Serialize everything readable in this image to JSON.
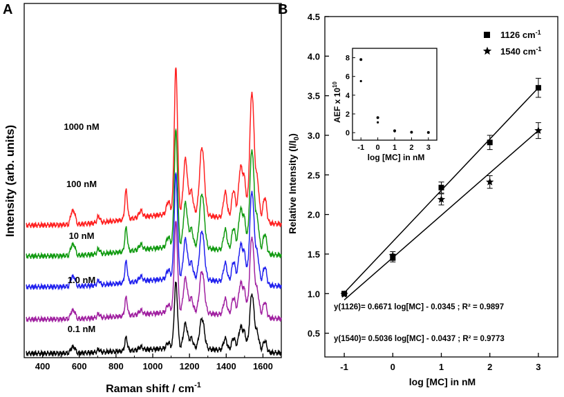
{
  "chart_data": [
    {
      "type": "line",
      "panel_label": "A",
      "title": "",
      "xlabel": "Raman shift / cm",
      "xlabel_sup": "-1",
      "ylabel": "Intensity (arb. units)",
      "xlim": [
        300,
        1700
      ],
      "xticks": [
        "400",
        "600",
        "800",
        "1000",
        "1200",
        "1400",
        "1600"
      ],
      "peaks": [
        {
          "x": 560,
          "w": 8,
          "h": 0.4
        },
        {
          "x": 575,
          "w": 6,
          "h": 0.3
        },
        {
          "x": 705,
          "w": 8,
          "h": 0.2
        },
        {
          "x": 855,
          "w": 7,
          "h": 0.9
        },
        {
          "x": 935,
          "w": 10,
          "h": 0.2
        },
        {
          "x": 1085,
          "w": 10,
          "h": 0.4
        },
        {
          "x": 1126,
          "w": 9,
          "h": 4.5
        },
        {
          "x": 1178,
          "w": 11,
          "h": 1.7
        },
        {
          "x": 1210,
          "w": 10,
          "h": 0.7
        },
        {
          "x": 1268,
          "w": 13,
          "h": 2.1
        },
        {
          "x": 1395,
          "w": 10,
          "h": 0.8
        },
        {
          "x": 1440,
          "w": 10,
          "h": 0.9
        },
        {
          "x": 1478,
          "w": 11,
          "h": 1.6
        },
        {
          "x": 1500,
          "w": 9,
          "h": 1.1
        },
        {
          "x": 1540,
          "w": 12,
          "h": 4.0
        },
        {
          "x": 1570,
          "w": 10,
          "h": 1.2
        },
        {
          "x": 1610,
          "w": 10,
          "h": 0.8
        }
      ],
      "series": [
        {
          "name": "1000 nM",
          "color": "#ff2020",
          "baseline": 3.95,
          "scale": 1.0
        },
        {
          "name": "100 nM",
          "color": "#109a10",
          "baseline": 3.0,
          "scale": 0.8
        },
        {
          "name": "10 nM",
          "color": "#2020ee",
          "baseline": 2.05,
          "scale": 0.72
        },
        {
          "name": "1.0 nM",
          "color": "#a020a0",
          "baseline": 1.05,
          "scale": 0.62
        },
        {
          "name": "0.1 nM",
          "color": "#000000",
          "baseline": 0.0,
          "scale": 0.45
        }
      ]
    },
    {
      "type": "scatter",
      "panel_label": "B",
      "title": "",
      "xlabel": "log [MC] in nM",
      "ylabel": "Relative Intensity (I/I",
      "ylabel_sub": "0",
      "ylabel_end": ")",
      "xlim": [
        -1.4,
        3.4
      ],
      "ylim": [
        0.2,
        4.5
      ],
      "xticks": [
        -1,
        0,
        1,
        2,
        3
      ],
      "xtick_labels": [
        "-1",
        "0",
        "1",
        "2",
        "3"
      ],
      "yticks": [
        0.5,
        1.0,
        1.5,
        2.0,
        2.5,
        3.0,
        3.5,
        4.0,
        4.5
      ],
      "ytick_labels": [
        "0.5",
        "1.0",
        "1.5",
        "2.0",
        "2.5",
        "3.0",
        "3.5",
        "4.0",
        "4.5"
      ],
      "series": [
        {
          "name": "1126 cm",
          "name_sup": "-1",
          "marker": "square",
          "x": [
            -1,
            0,
            1,
            2,
            3
          ],
          "y": [
            1.0,
            1.45,
            2.34,
            2.91,
            3.6
          ],
          "err": [
            0.02,
            0.05,
            0.07,
            0.09,
            0.12
          ],
          "fit": {
            "x": [
              -1,
              3
            ],
            "y": [
              1.01,
              3.6
            ]
          }
        },
        {
          "name": "1540 cm",
          "name_sup": "-1",
          "marker": "star",
          "x": [
            -1,
            0,
            1,
            2,
            3
          ],
          "y": [
            0.99,
            1.48,
            2.19,
            2.41,
            3.06
          ],
          "err": [
            0.02,
            0.05,
            0.07,
            0.08,
            0.1
          ],
          "fit": {
            "x": [
              -1,
              3
            ],
            "y": [
              0.92,
              3.06
            ]
          }
        }
      ],
      "equations": [
        "y(1126)= 0.6671 log[MC] - 0.0345 ; R² = 0.9897",
        "y(1540)= 0.5036 log[MC] - 0.0437 ; R² = 0.9773"
      ],
      "inset": {
        "type": "scatter",
        "xlabel": "log [MC] in nM",
        "ylabel": "AEF x 10",
        "ylabel_sup": "10",
        "xlim": [
          -1.5,
          3.5
        ],
        "ylim": [
          -0.8,
          9
        ],
        "xticks": [
          -1,
          0,
          1,
          2,
          3
        ],
        "xtick_labels": [
          "-1",
          "0",
          "1",
          "2",
          "3"
        ],
        "yticks": [
          0,
          2,
          4,
          6,
          8
        ],
        "ytick_labels": [
          "0",
          "2",
          "4",
          "6",
          "8"
        ],
        "series": [
          {
            "name": "1126 cm-1",
            "marker": "dot",
            "x": [
              -1,
              0,
              1,
              2,
              3
            ],
            "y": [
              7.8,
              1.6,
              0.2,
              0.05,
              0.02
            ]
          },
          {
            "name": "1540 cm-1",
            "marker": "dot",
            "x": [
              -1,
              0,
              1,
              2,
              3
            ],
            "y": [
              5.5,
              1.1,
              0.15,
              0.04,
              0.02
            ]
          }
        ]
      }
    }
  ]
}
